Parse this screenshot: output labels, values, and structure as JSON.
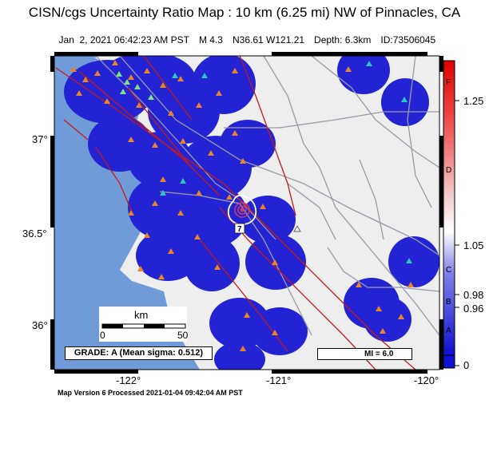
{
  "title": "CISN/cgs Uncertainty Ratio Map : 10 km (6.25 mi) NW of Pinnacles, CA",
  "subtitle": {
    "datetime": "Jan  2, 2021 06:42:23 AM PST",
    "magnitude": "M 4.3",
    "location": "N36.61 W121.21",
    "depth": "Depth: 6.3km",
    "id": "ID:73506045"
  },
  "lat_labels": [
    "37°",
    "36.5°",
    "36°"
  ],
  "lon_labels": [
    "-122°",
    "-121°",
    "-120°"
  ],
  "colorbar": {
    "letters": [
      "F",
      "D",
      "C",
      "B",
      "A"
    ],
    "ticks": [
      "1.25",
      "1.05",
      "0.98",
      "0.96",
      "0"
    ]
  },
  "scale": {
    "unit": "km",
    "tick_min": "0",
    "tick_max": "50"
  },
  "grade": "GRADE: A (Mean sigma: 0.512)",
  "mi_legend": "MI = 6.0",
  "footer": "Map Version 6 Processed 2021-01-04 09:42:04 AM PST",
  "contour_label": "7",
  "colors": {
    "ocean": "#6f9bd8",
    "land": "#eeeeee",
    "uncertainty_low": "#1f1fcf",
    "fault": "#c41a1a",
    "road": "#9a9aa8"
  }
}
